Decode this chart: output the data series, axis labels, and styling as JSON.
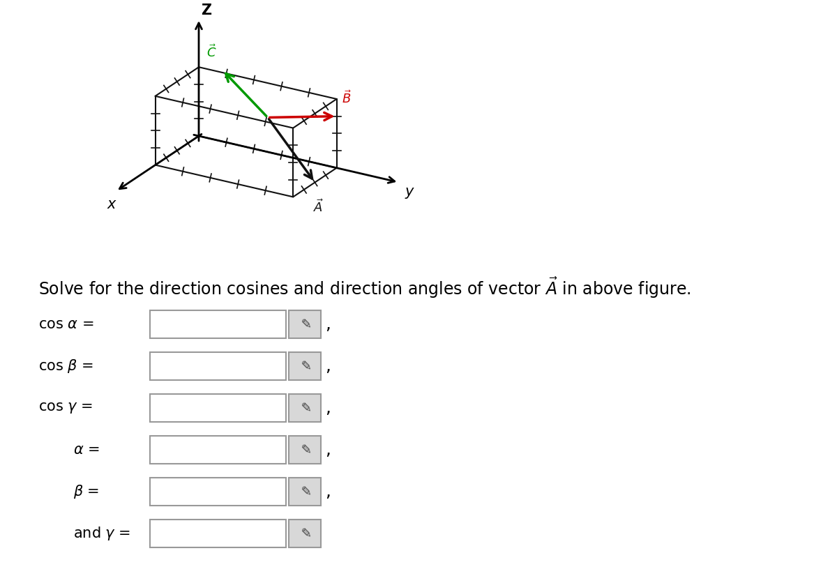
{
  "bg_color": "#ffffff",
  "title_text": "Solve for the direction cosines and direction angles of vector $\\vec{A}$ in above figure.",
  "title_fontsize": 17,
  "rows": [
    {
      "label": "cos α =",
      "has_comma": true
    },
    {
      "label": "cos β =",
      "has_comma": true
    },
    {
      "label": "cos γ =",
      "has_comma": true
    },
    {
      "α =": "α =",
      "label": "α =",
      "has_comma": true
    },
    {
      "label": "β =",
      "has_comma": true
    },
    {
      "label": "and γ =",
      "has_comma": false
    }
  ],
  "vector_A_color": "#111111",
  "vector_B_color": "#cc0000",
  "vector_C_color": "#009900",
  "grid_color": "#111111",
  "label_x_color": "#000000",
  "label_y_color": "#000000",
  "label_z_color": "#000000",
  "box_fill": "#ffffff",
  "box_edge": "#999999",
  "icon_fill": "#d8d8d8",
  "icon_edge": "#999999"
}
